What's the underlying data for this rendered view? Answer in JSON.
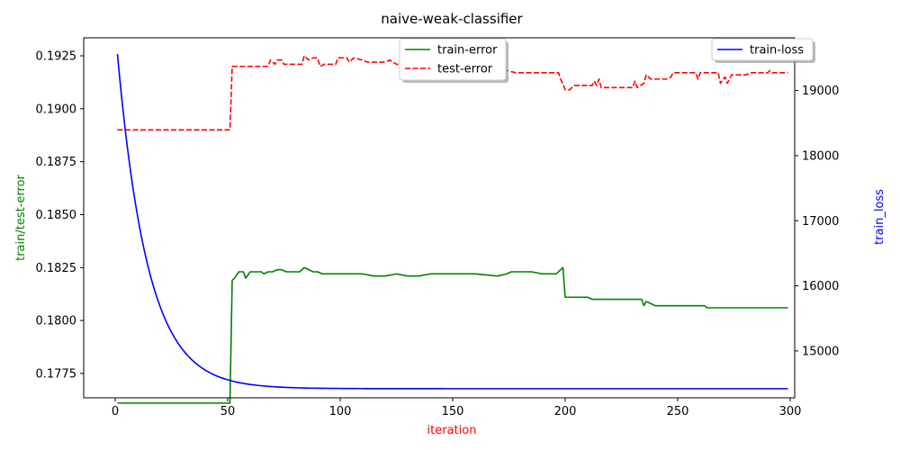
{
  "chart_data": {
    "type": "line",
    "title": "naive-weak-classifier",
    "xlabel": "iteration",
    "ylabel_left": "train/test-error",
    "ylabel_right": "train_loss",
    "xlim": [
      -14,
      302
    ],
    "xticks": [
      0,
      50,
      100,
      150,
      200,
      250,
      300
    ],
    "xtick_labels": [
      "0",
      "50",
      "100",
      "150",
      "200",
      "250",
      "300"
    ],
    "ylim_left": [
      0.17635,
      0.19335
    ],
    "yticks_left": [
      0.1775,
      0.18,
      0.1825,
      0.185,
      0.1875,
      0.19,
      0.1925
    ],
    "ytick_labels_left": [
      "0.1775",
      "0.1800",
      "0.1825",
      "0.1850",
      "0.1875",
      "0.1900",
      "0.1925"
    ],
    "ylim_right": [
      14280,
      19810
    ],
    "yticks_right": [
      15000,
      16000,
      17000,
      18000,
      19000
    ],
    "ytick_labels_right": [
      "15000",
      "16000",
      "17000",
      "18000",
      "19000"
    ],
    "grid": false,
    "colors": {
      "train_error": "#008000",
      "test_error": "#ff0000",
      "train_loss": "#0000ff",
      "ylabel_left": "#008000",
      "ylabel_right": "#0000ff",
      "xlabel": "#ff0000"
    },
    "legends": [
      {
        "placement": "upper-center",
        "entries": [
          {
            "label": "train-error",
            "series": "train_error",
            "style": "solid"
          },
          {
            "label": "test-error",
            "series": "test_error",
            "style": "dashed"
          }
        ]
      },
      {
        "placement": "upper-right",
        "entries": [
          {
            "label": "train-loss",
            "series": "train_loss",
            "style": "solid"
          }
        ]
      }
    ],
    "series": [
      {
        "name": "train-error",
        "key": "train_error",
        "axis": "left",
        "points": [
          [
            1,
            0.1761
          ],
          [
            51,
            0.1761
          ],
          [
            52,
            0.1819
          ],
          [
            53,
            0.182
          ],
          [
            55,
            0.1823
          ],
          [
            57,
            0.1823
          ],
          [
            58,
            0.182
          ],
          [
            60,
            0.1823
          ],
          [
            65,
            0.1823
          ],
          [
            66,
            0.1822
          ],
          [
            68,
            0.1823
          ],
          [
            70,
            0.1823
          ],
          [
            72,
            0.1824
          ],
          [
            74,
            0.1824
          ],
          [
            76,
            0.1823
          ],
          [
            82,
            0.1823
          ],
          [
            84,
            0.1825
          ],
          [
            86,
            0.1824
          ],
          [
            88,
            0.1823
          ],
          [
            90,
            0.1823
          ],
          [
            92,
            0.1822
          ],
          [
            94,
            0.1822
          ],
          [
            96,
            0.1822
          ],
          [
            100,
            0.1822
          ],
          [
            110,
            0.1822
          ],
          [
            115,
            0.1821
          ],
          [
            120,
            0.1821
          ],
          [
            125,
            0.1822
          ],
          [
            130,
            0.1821
          ],
          [
            135,
            0.1821
          ],
          [
            140,
            0.1822
          ],
          [
            150,
            0.1822
          ],
          [
            160,
            0.1822
          ],
          [
            170,
            0.1821
          ],
          [
            174,
            0.1822
          ],
          [
            176,
            0.1823
          ],
          [
            180,
            0.1823
          ],
          [
            185,
            0.1823
          ],
          [
            190,
            0.1822
          ],
          [
            196,
            0.1822
          ],
          [
            199,
            0.1825
          ],
          [
            200,
            0.1811
          ],
          [
            205,
            0.1811
          ],
          [
            210,
            0.1811
          ],
          [
            212,
            0.181
          ],
          [
            215,
            0.181
          ],
          [
            220,
            0.181
          ],
          [
            225,
            0.181
          ],
          [
            230,
            0.181
          ],
          [
            234,
            0.181
          ],
          [
            235,
            0.1807
          ],
          [
            236,
            0.1809
          ],
          [
            240,
            0.1807
          ],
          [
            245,
            0.1807
          ],
          [
            250,
            0.1807
          ],
          [
            258,
            0.1807
          ],
          [
            262,
            0.1807
          ],
          [
            263,
            0.1806
          ],
          [
            270,
            0.1806
          ],
          [
            275,
            0.1806
          ],
          [
            280,
            0.1806
          ],
          [
            290,
            0.1806
          ],
          [
            299,
            0.1806
          ]
        ]
      },
      {
        "name": "test-error",
        "key": "test_error",
        "axis": "left",
        "points": [
          [
            1,
            0.189
          ],
          [
            51,
            0.189
          ],
          [
            52,
            0.192
          ],
          [
            65,
            0.192
          ],
          [
            68,
            0.192
          ],
          [
            69,
            0.1923
          ],
          [
            71,
            0.1921
          ],
          [
            72,
            0.1923
          ],
          [
            74,
            0.1923
          ],
          [
            75,
            0.1921
          ],
          [
            83,
            0.1921
          ],
          [
            84,
            0.1925
          ],
          [
            86,
            0.1923
          ],
          [
            88,
            0.1924
          ],
          [
            90,
            0.1924
          ],
          [
            91,
            0.192
          ],
          [
            93,
            0.1921
          ],
          [
            98,
            0.1921
          ],
          [
            99,
            0.1924
          ],
          [
            103,
            0.1924
          ],
          [
            104,
            0.1922
          ],
          [
            106,
            0.1924
          ],
          [
            110,
            0.1923
          ],
          [
            112,
            0.1922
          ],
          [
            120,
            0.1922
          ],
          [
            122,
            0.1923
          ],
          [
            125,
            0.1921
          ],
          [
            130,
            0.1921
          ],
          [
            135,
            0.192
          ],
          [
            140,
            0.1918
          ],
          [
            145,
            0.1918
          ],
          [
            150,
            0.1918
          ],
          [
            155,
            0.1918
          ],
          [
            160,
            0.1918
          ],
          [
            165,
            0.1918
          ],
          [
            170,
            0.1918
          ],
          [
            172,
            0.1916
          ],
          [
            174,
            0.1918
          ],
          [
            178,
            0.1917
          ],
          [
            182,
            0.1917
          ],
          [
            185,
            0.1917
          ],
          [
            190,
            0.1917
          ],
          [
            197,
            0.1917
          ],
          [
            198,
            0.1914
          ],
          [
            200,
            0.1909
          ],
          [
            202,
            0.1909
          ],
          [
            204,
            0.1911
          ],
          [
            210,
            0.1911
          ],
          [
            212,
            0.1911
          ],
          [
            213,
            0.1913
          ],
          [
            214,
            0.1911
          ],
          [
            215,
            0.1914
          ],
          [
            216,
            0.191
          ],
          [
            220,
            0.191
          ],
          [
            225,
            0.191
          ],
          [
            230,
            0.191
          ],
          [
            231,
            0.1913
          ],
          [
            232,
            0.191
          ],
          [
            235,
            0.1912
          ],
          [
            236,
            0.1916
          ],
          [
            238,
            0.1914
          ],
          [
            245,
            0.1914
          ],
          [
            247,
            0.1915
          ],
          [
            248,
            0.1917
          ],
          [
            255,
            0.1917
          ],
          [
            258,
            0.1917
          ],
          [
            259,
            0.1914
          ],
          [
            260,
            0.1917
          ],
          [
            268,
            0.1917
          ],
          [
            269,
            0.1912
          ],
          [
            271,
            0.1915
          ],
          [
            272,
            0.1912
          ],
          [
            274,
            0.1916
          ],
          [
            280,
            0.1916
          ],
          [
            283,
            0.1917
          ],
          [
            290,
            0.1917
          ],
          [
            291,
            0.1918
          ],
          [
            292,
            0.1917
          ],
          [
            299,
            0.1917
          ]
        ]
      },
      {
        "name": "train-loss",
        "key": "train_loss",
        "axis": "right",
        "model": {
          "form": "exponential_decay",
          "x_from": 1,
          "x_to": 299,
          "start": 19560,
          "end": 14420,
          "tau": 13.5
        }
      }
    ]
  }
}
